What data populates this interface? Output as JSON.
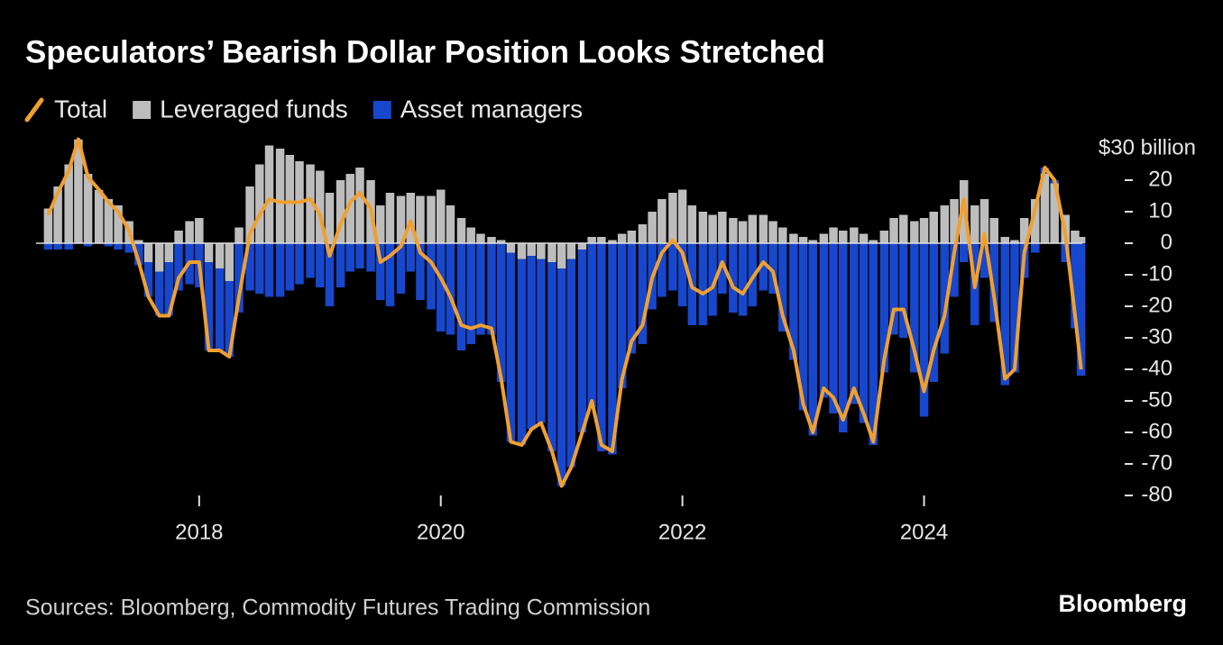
{
  "chart_data": {
    "type": "bar",
    "stacked": true,
    "title": "Speculators’ Bearish Dollar Position Looks Stretched",
    "source": "Sources: Bloomberg, Commodity Futures Trading Commission",
    "brand": "Bloomberg",
    "x": [
      2016.75,
      2016.83,
      2016.92,
      2017.0,
      2017.08,
      2017.17,
      2017.25,
      2017.33,
      2017.42,
      2017.5,
      2017.58,
      2017.67,
      2017.75,
      2017.83,
      2017.92,
      2018.0,
      2018.08,
      2018.17,
      2018.25,
      2018.33,
      2018.42,
      2018.5,
      2018.58,
      2018.67,
      2018.75,
      2018.83,
      2018.92,
      2019.0,
      2019.08,
      2019.17,
      2019.25,
      2019.33,
      2019.42,
      2019.5,
      2019.58,
      2019.67,
      2019.75,
      2019.83,
      2019.92,
      2020.0,
      2020.08,
      2020.17,
      2020.25,
      2020.33,
      2020.42,
      2020.5,
      2020.58,
      2020.67,
      2020.75,
      2020.83,
      2020.92,
      2021.0,
      2021.08,
      2021.17,
      2021.25,
      2021.33,
      2021.42,
      2021.5,
      2021.58,
      2021.67,
      2021.75,
      2021.83,
      2021.92,
      2022.0,
      2022.08,
      2022.17,
      2022.25,
      2022.33,
      2022.42,
      2022.5,
      2022.58,
      2022.67,
      2022.75,
      2022.83,
      2022.92,
      2023.0,
      2023.08,
      2023.17,
      2023.25,
      2023.33,
      2023.42,
      2023.5,
      2023.58,
      2023.67,
      2023.75,
      2023.83,
      2023.92,
      2024.0,
      2024.08,
      2024.17,
      2024.25,
      2024.33,
      2024.42,
      2024.5,
      2024.58,
      2024.67,
      2024.75,
      2024.83,
      2024.92,
      2025.0,
      2025.08,
      2025.17,
      2025.25,
      2025.3
    ],
    "series": [
      {
        "name": "Leveraged funds",
        "type": "bar",
        "color": "#bdbdbd",
        "values": [
          11,
          18,
          25,
          33,
          22,
          17,
          14,
          12,
          7,
          1,
          -6,
          -9,
          -6,
          4,
          7,
          8,
          -6,
          -8,
          -12,
          5,
          18,
          25,
          31,
          30,
          28,
          26,
          25,
          23,
          16,
          20,
          22,
          24,
          20,
          12,
          16,
          15,
          16,
          15,
          15,
          17,
          12,
          8,
          5,
          3,
          2,
          1,
          -3,
          -5,
          -4,
          -5,
          -6,
          -8,
          -5,
          -2,
          2,
          2,
          1,
          3,
          4,
          6,
          10,
          14,
          16,
          17,
          12,
          10,
          9,
          10,
          8,
          7,
          9,
          9,
          7,
          5,
          3,
          2,
          1,
          3,
          5,
          4,
          5,
          3,
          1,
          4,
          8,
          9,
          7,
          8,
          10,
          12,
          14,
          20,
          12,
          14,
          8,
          2,
          1,
          8,
          14,
          22,
          19,
          9,
          4,
          2
        ]
      },
      {
        "name": "Asset managers",
        "type": "bar",
        "color": "#1747cc",
        "values": [
          -2,
          -2,
          -2,
          0,
          -1,
          0,
          -1,
          -2,
          -3,
          -7,
          -11,
          -14,
          -17,
          -15,
          -13,
          -14,
          -28,
          -26,
          -24,
          -22,
          -15,
          -16,
          -17,
          -17,
          -15,
          -13,
          -11,
          -14,
          -20,
          -14,
          -9,
          -8,
          -9,
          -18,
          -20,
          -16,
          -9,
          -18,
          -21,
          -28,
          -29,
          -34,
          -32,
          -29,
          -29,
          -44,
          -60,
          -59,
          -55,
          -52,
          -60,
          -69,
          -66,
          -58,
          -52,
          -66,
          -67,
          -46,
          -35,
          -32,
          -21,
          -17,
          -15,
          -20,
          -26,
          -26,
          -23,
          -16,
          -22,
          -23,
          -20,
          -15,
          -16,
          -28,
          -37,
          -53,
          -61,
          -49,
          -54,
          -60,
          -51,
          -57,
          -64,
          -41,
          -29,
          -30,
          -41,
          -55,
          -44,
          -35,
          -17,
          -6,
          -26,
          -11,
          -25,
          -45,
          -41,
          -11,
          -3,
          2,
          1,
          -6,
          -27,
          -42
        ]
      },
      {
        "name": "Total",
        "type": "line",
        "color": "#f0a030",
        "values": [
          9,
          16,
          23,
          33,
          21,
          17,
          13,
          10,
          4,
          -6,
          -17,
          -23,
          -23,
          -11,
          -6,
          -6,
          -34,
          -34,
          -36,
          -17,
          3,
          9,
          14,
          13,
          13,
          13,
          14,
          9,
          -4,
          6,
          13,
          16,
          11,
          -6,
          -4,
          -1,
          7,
          -3,
          -6,
          -11,
          -17,
          -26,
          -27,
          -26,
          -27,
          -43,
          -63,
          -64,
          -59,
          -57,
          -66,
          -77,
          -71,
          -60,
          -50,
          -64,
          -66,
          -43,
          -31,
          -26,
          -11,
          -3,
          1,
          -3,
          -14,
          -16,
          -14,
          -6,
          -14,
          -16,
          -11,
          -6,
          -9,
          -23,
          -34,
          -51,
          -60,
          -46,
          -49,
          -56,
          -46,
          -54,
          -63,
          -37,
          -21,
          -21,
          -34,
          -47,
          -34,
          -23,
          -3,
          14,
          -14,
          3,
          -17,
          -43,
          -40,
          -3,
          11,
          24,
          20,
          3,
          -23,
          -40
        ]
      }
    ],
    "xlim": [
      2016.65,
      2025.31
    ],
    "xticks": [
      2018,
      2020,
      2022,
      2024
    ],
    "ylim": [
      -80,
      30
    ],
    "yticks": [
      {
        "value": 30,
        "label": "$30 billion"
      },
      20,
      10,
      0,
      -10,
      -20,
      -30,
      -40,
      -50,
      -60,
      -70,
      -80
    ]
  }
}
